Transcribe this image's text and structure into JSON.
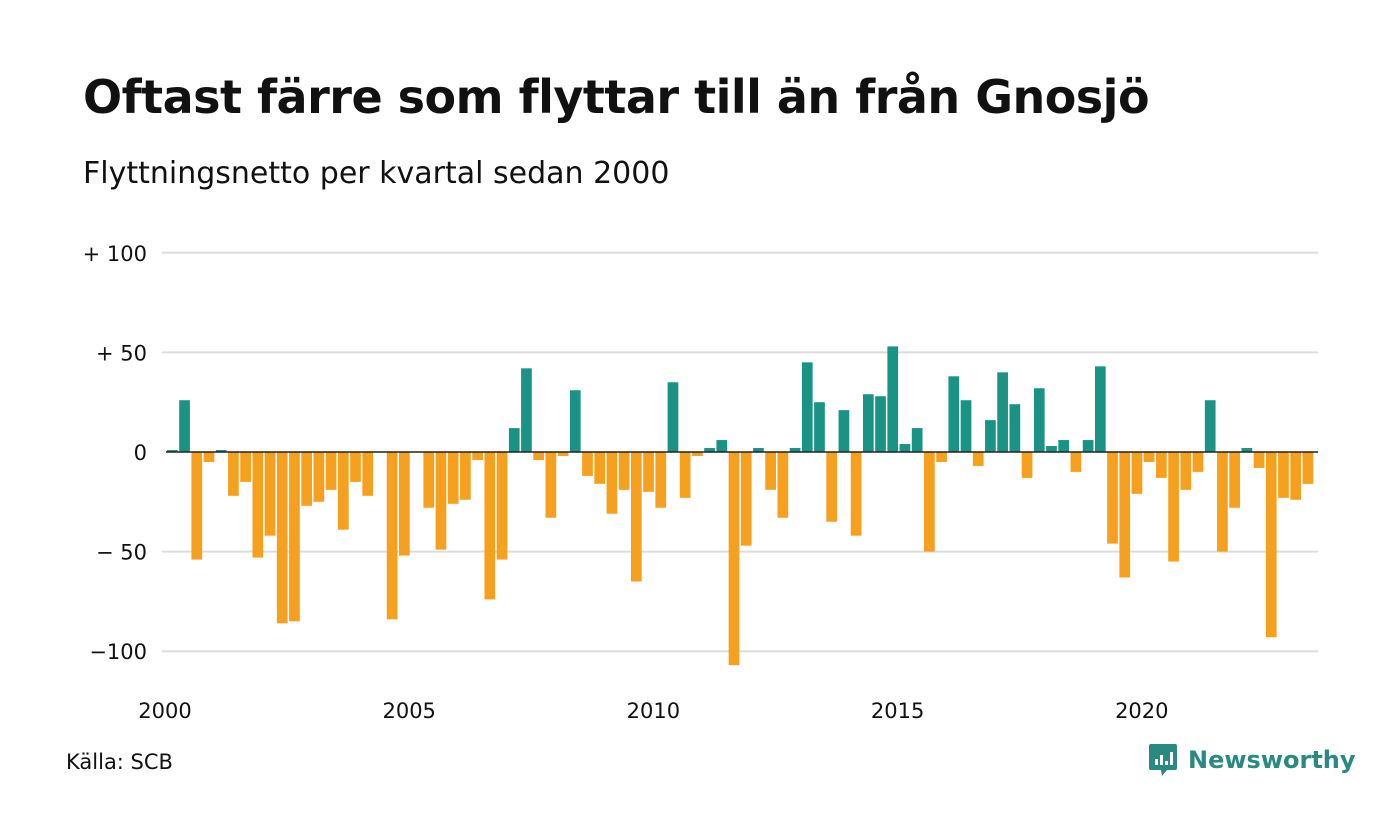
{
  "header": {
    "title": "Oftast färre som flyttar till än från Gnosjö",
    "subtitle": "Flyttningsnetto per kvartal sedan 2000"
  },
  "footer": {
    "source": "Källa: SCB",
    "brand": "Newsworthy"
  },
  "colors": {
    "positive": "#1a9385",
    "negative": "#f5a01f",
    "grid": "#dddddd",
    "zero_line": "#222222",
    "brand": "#2a8a80"
  },
  "chart_data": {
    "type": "bar",
    "title": "Oftast färre som flyttar till än från Gnosjö",
    "subtitle": "Flyttningsnetto per kvartal sedan 2000",
    "xlabel": "",
    "ylabel": "",
    "ylim": [
      -110,
      100
    ],
    "grid": true,
    "yticks": [
      {
        "value": 100,
        "label": "+ 100"
      },
      {
        "value": 50,
        "label": "+  50"
      },
      {
        "value": 0,
        "label": "0"
      },
      {
        "value": -50,
        "label": "− 50"
      },
      {
        "value": -100,
        "label": "−100"
      }
    ],
    "xticks": [
      {
        "year": 2000,
        "label": "2000"
      },
      {
        "year": 2005,
        "label": "2005"
      },
      {
        "year": 2010,
        "label": "2010"
      },
      {
        "year": 2015,
        "label": "2015"
      },
      {
        "year": 2020,
        "label": "2020"
      }
    ],
    "start_year": 2000,
    "start_quarter": 1,
    "values": [
      1,
      26,
      -54,
      -5,
      1,
      -22,
      -15,
      -53,
      -42,
      -86,
      -85,
      -27,
      -25,
      -19,
      -39,
      -15,
      -22,
      0,
      -84,
      -52,
      0,
      -28,
      -49,
      -26,
      -24,
      -4,
      -74,
      -54,
      12,
      42,
      -4,
      -33,
      -2,
      31,
      -12,
      -16,
      -31,
      -19,
      -65,
      -20,
      -28,
      35,
      -23,
      -2,
      2,
      6,
      -107,
      -47,
      2,
      -19,
      -33,
      2,
      45,
      25,
      -35,
      21,
      -42,
      29,
      28,
      53,
      4,
      12,
      -50,
      -5,
      38,
      26,
      -7,
      16,
      40,
      24,
      -13,
      32,
      3,
      6,
      -10,
      6,
      43,
      -46,
      -63,
      -21,
      -5,
      -13,
      -55,
      -19,
      -10,
      26,
      -50,
      -28,
      2,
      -8,
      -93,
      -23,
      -24,
      -16
    ]
  }
}
